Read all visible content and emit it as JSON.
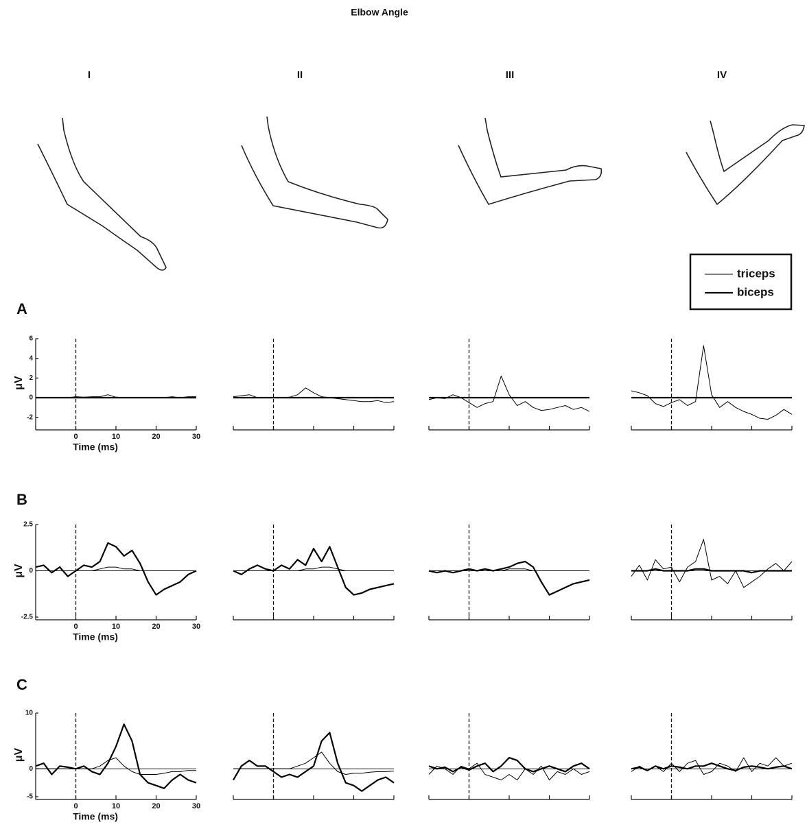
{
  "title": "Elbow Angle",
  "columns": [
    "I",
    "II",
    "III",
    "IV"
  ],
  "rows": [
    "A",
    "B",
    "C"
  ],
  "chart_data": [
    {
      "type": "line",
      "x": [
        -10,
        -8,
        -6,
        -4,
        -2,
        0,
        2,
        4,
        6,
        8,
        10,
        12,
        14,
        16,
        18,
        20,
        22,
        24,
        26,
        28,
        30
      ],
      "xlim": [
        -10,
        30
      ],
      "xticks": [
        0,
        10,
        20,
        30
      ],
      "ylim": [
        -3,
        6
      ],
      "yticks": [
        -2,
        0,
        2,
        4,
        6
      ],
      "vline": 0,
      "hline": 0,
      "tick_labels": true,
      "xlabel": "Time (ms)",
      "ylabel": "μV",
      "legend": true,
      "series": [
        {
          "name": "triceps",
          "color": "#000000",
          "width": 1,
          "values": [
            0,
            0,
            0,
            0,
            0,
            0.1,
            0.05,
            0.1,
            0.1,
            0.3,
            0.05,
            0,
            0,
            0,
            0,
            0,
            0,
            0.1,
            0,
            0.1,
            0.1
          ]
        },
        {
          "name": "biceps",
          "color": "#000000",
          "width": 2.2,
          "values": [
            0,
            0,
            0,
            0,
            0,
            0,
            0,
            0,
            0,
            0,
            0,
            0,
            0,
            0,
            0,
            0,
            0,
            0,
            0,
            0,
            0
          ]
        }
      ]
    },
    {
      "type": "line",
      "x": [
        -10,
        -8,
        -6,
        -4,
        -2,
        0,
        2,
        4,
        6,
        8,
        10,
        12,
        14,
        16,
        18,
        20,
        22,
        24,
        26,
        28,
        30
      ],
      "xlim": [
        -10,
        30
      ],
      "xticks": [
        0,
        10,
        20,
        30
      ],
      "ylim": [
        -3,
        6
      ],
      "vline": 0,
      "hline": 0,
      "tick_labels": false,
      "series": [
        {
          "name": "triceps",
          "color": "#000000",
          "width": 1,
          "values": [
            0.1,
            0.2,
            0.3,
            0,
            0,
            0,
            0,
            0.05,
            0.3,
            1.0,
            0.5,
            0.1,
            0,
            -0.1,
            -0.2,
            -0.3,
            -0.4,
            -0.4,
            -0.3,
            -0.5,
            -0.4
          ]
        },
        {
          "name": "biceps",
          "color": "#000000",
          "width": 2.2,
          "values": [
            0,
            0,
            0,
            0,
            0,
            0,
            0,
            0,
            0,
            0,
            0,
            0,
            0,
            0,
            0,
            0,
            0,
            0,
            0,
            0,
            0
          ]
        }
      ]
    },
    {
      "type": "line",
      "x": [
        -10,
        -8,
        -6,
        -4,
        -2,
        0,
        2,
        4,
        6,
        8,
        10,
        12,
        14,
        16,
        18,
        20,
        22,
        24,
        26,
        28,
        30
      ],
      "xlim": [
        -10,
        30
      ],
      "xticks": [
        0,
        10,
        20,
        30
      ],
      "ylim": [
        -3,
        6
      ],
      "vline": 0,
      "hline": 0,
      "tick_labels": false,
      "series": [
        {
          "name": "triceps",
          "color": "#000000",
          "width": 1,
          "values": [
            -0.2,
            0,
            -0.1,
            0.3,
            0,
            -0.5,
            -1,
            -0.6,
            -0.4,
            2.2,
            0.3,
            -0.8,
            -0.4,
            -1,
            -1.3,
            -1.2,
            -1.0,
            -0.8,
            -1.2,
            -1.0,
            -1.4
          ]
        },
        {
          "name": "biceps",
          "color": "#000000",
          "width": 2.2,
          "values": [
            0,
            0,
            0,
            0,
            0,
            0,
            0,
            0,
            0,
            0,
            0,
            0,
            0,
            0,
            0,
            0,
            0,
            0,
            0,
            0,
            0
          ]
        }
      ]
    },
    {
      "type": "line",
      "x": [
        -10,
        -8,
        -6,
        -4,
        -2,
        0,
        2,
        4,
        6,
        8,
        10,
        12,
        14,
        16,
        18,
        20,
        22,
        24,
        26,
        28,
        30
      ],
      "xlim": [
        -10,
        30
      ],
      "xticks": [
        0,
        10,
        20,
        30
      ],
      "ylim": [
        -3,
        6
      ],
      "vline": 0,
      "hline": 0,
      "tick_labels": false,
      "series": [
        {
          "name": "triceps",
          "color": "#000000",
          "width": 1,
          "values": [
            0.7,
            0.5,
            0.2,
            -0.6,
            -0.9,
            -0.5,
            -0.2,
            -0.8,
            -0.4,
            5.3,
            0.3,
            -1.0,
            -0.4,
            -1.0,
            -1.4,
            -1.7,
            -2.1,
            -2.2,
            -1.8,
            -1.2,
            -1.7
          ]
        },
        {
          "name": "biceps",
          "color": "#000000",
          "width": 2.2,
          "values": [
            0,
            0,
            0,
            0,
            0,
            0,
            0,
            0,
            0,
            0,
            0,
            0,
            0,
            0,
            0,
            0,
            0,
            0,
            0,
            0,
            0
          ]
        }
      ]
    },
    {
      "type": "line",
      "x": [
        -10,
        -8,
        -6,
        -4,
        -2,
        0,
        2,
        4,
        6,
        8,
        10,
        12,
        14,
        16,
        18,
        20,
        22,
        24,
        26,
        28,
        30
      ],
      "xlim": [
        -10,
        30
      ],
      "xticks": [
        0,
        10,
        20,
        30
      ],
      "ylim": [
        -2.5,
        2.5
      ],
      "yticks": [
        -2.5,
        0,
        2.5
      ],
      "vline": 0,
      "hline": 0,
      "tick_labels": true,
      "xlabel": "Time (ms)",
      "ylabel": "μV",
      "series": [
        {
          "name": "triceps",
          "color": "#000000",
          "width": 1,
          "values": [
            0,
            0,
            0,
            0,
            0,
            0,
            0,
            0,
            0.1,
            0.2,
            0.2,
            0.1,
            0.1,
            0,
            0,
            0,
            0,
            0,
            0,
            0,
            0
          ]
        },
        {
          "name": "biceps",
          "color": "#000000",
          "width": 2.2,
          "values": [
            0.2,
            0.3,
            -0.1,
            0.2,
            -0.3,
            0,
            0.3,
            0.2,
            0.5,
            1.5,
            1.3,
            0.8,
            1.1,
            0.4,
            -0.6,
            -1.3,
            -1.0,
            -0.8,
            -0.6,
            -0.2,
            0
          ]
        }
      ]
    },
    {
      "type": "line",
      "x": [
        -10,
        -8,
        -6,
        -4,
        -2,
        0,
        2,
        4,
        6,
        8,
        10,
        12,
        14,
        16,
        18,
        20,
        22,
        24,
        26,
        28,
        30
      ],
      "xlim": [
        -10,
        30
      ],
      "xticks": [
        0,
        10,
        20,
        30
      ],
      "ylim": [
        -2.5,
        2.5
      ],
      "vline": 0,
      "hline": 0,
      "tick_labels": false,
      "series": [
        {
          "name": "triceps",
          "color": "#000000",
          "width": 1,
          "values": [
            0,
            0,
            0,
            0,
            0,
            0,
            0,
            0,
            0,
            0.1,
            0.1,
            0.2,
            0.2,
            0.1,
            0,
            0,
            0,
            0,
            0,
            0,
            0
          ]
        },
        {
          "name": "biceps",
          "color": "#000000",
          "width": 2.2,
          "values": [
            0,
            -0.2,
            0.1,
            0.3,
            0.1,
            0,
            0.3,
            0.1,
            0.6,
            0.3,
            1.2,
            0.5,
            1.3,
            0.2,
            -0.9,
            -1.3,
            -1.2,
            -1.0,
            -0.9,
            -0.8,
            -0.7
          ]
        }
      ]
    },
    {
      "type": "line",
      "x": [
        -10,
        -8,
        -6,
        -4,
        -2,
        0,
        2,
        4,
        6,
        8,
        10,
        12,
        14,
        16,
        18,
        20,
        22,
        24,
        26,
        28,
        30
      ],
      "xlim": [
        -10,
        30
      ],
      "xticks": [
        0,
        10,
        20,
        30
      ],
      "ylim": [
        -2.5,
        2.5
      ],
      "vline": 0,
      "hline": 0,
      "tick_labels": false,
      "series": [
        {
          "name": "triceps",
          "color": "#000000",
          "width": 1,
          "values": [
            0,
            0,
            0,
            0,
            0,
            0,
            0,
            0,
            0,
            0,
            0.1,
            0.1,
            0.1,
            0,
            0,
            0,
            0,
            0,
            0,
            0,
            0
          ]
        },
        {
          "name": "biceps",
          "color": "#000000",
          "width": 2.2,
          "values": [
            0,
            -0.1,
            0,
            -0.1,
            0,
            0.1,
            0,
            0.1,
            0,
            0.1,
            0.2,
            0.4,
            0.5,
            0.2,
            -0.6,
            -1.3,
            -1.1,
            -0.9,
            -0.7,
            -0.6,
            -0.5
          ]
        }
      ]
    },
    {
      "type": "line",
      "x": [
        -10,
        -8,
        -6,
        -4,
        -2,
        0,
        2,
        4,
        6,
        8,
        10,
        12,
        14,
        16,
        18,
        20,
        22,
        24,
        26,
        28,
        30
      ],
      "xlim": [
        -10,
        30
      ],
      "xticks": [
        0,
        10,
        20,
        30
      ],
      "ylim": [
        -2.5,
        2.5
      ],
      "vline": 0,
      "hline": 0,
      "tick_labels": false,
      "series": [
        {
          "name": "triceps",
          "color": "#000000",
          "width": 1,
          "values": [
            -0.3,
            0.3,
            -0.5,
            0.6,
            0.1,
            0.2,
            -0.6,
            0.2,
            0.5,
            1.7,
            -0.5,
            -0.3,
            -0.7,
            0,
            -0.9,
            -0.6,
            -0.3,
            0.1,
            0.4,
            0,
            0.5
          ]
        },
        {
          "name": "biceps",
          "color": "#000000",
          "width": 2.2,
          "values": [
            0,
            0,
            0,
            0.1,
            0,
            0,
            0,
            0,
            0.1,
            0.1,
            0,
            0,
            0,
            0,
            0,
            -0.1,
            0,
            0,
            0,
            0,
            0
          ]
        }
      ]
    },
    {
      "type": "line",
      "x": [
        -10,
        -8,
        -6,
        -4,
        -2,
        0,
        2,
        4,
        6,
        8,
        10,
        12,
        14,
        16,
        18,
        20,
        22,
        24,
        26,
        28,
        30
      ],
      "xlim": [
        -10,
        30
      ],
      "xticks": [
        0,
        10,
        20,
        30
      ],
      "ylim": [
        -5,
        10
      ],
      "yticks": [
        -5,
        0,
        10
      ],
      "vline": 0,
      "hline": 0,
      "tick_labels": true,
      "xlabel": "Time (ms)",
      "ylabel": "μV",
      "series": [
        {
          "name": "triceps",
          "color": "#000000",
          "width": 1,
          "values": [
            0,
            0,
            0,
            0,
            0,
            0,
            0,
            0,
            0.5,
            1.5,
            2,
            0.5,
            -0.5,
            -1,
            -1,
            -1,
            -0.8,
            -0.5,
            -0.5,
            -0.3,
            -0.3
          ]
        },
        {
          "name": "biceps",
          "color": "#000000",
          "width": 2.2,
          "values": [
            0.5,
            1,
            -1,
            0.5,
            0.3,
            0,
            0.5,
            -0.5,
            -1,
            1,
            4,
            8,
            5,
            -1,
            -2.5,
            -3,
            -3.5,
            -2,
            -1,
            -2,
            -2.5
          ]
        }
      ]
    },
    {
      "type": "line",
      "x": [
        -10,
        -8,
        -6,
        -4,
        -2,
        0,
        2,
        4,
        6,
        8,
        10,
        12,
        14,
        16,
        18,
        20,
        22,
        24,
        26,
        28,
        30
      ],
      "xlim": [
        -10,
        30
      ],
      "xticks": [
        0,
        10,
        20,
        30
      ],
      "ylim": [
        -5,
        10
      ],
      "vline": 0,
      "hline": 0,
      "tick_labels": false,
      "series": [
        {
          "name": "triceps",
          "color": "#000000",
          "width": 1,
          "values": [
            0,
            0,
            0,
            0,
            0,
            0,
            0,
            0,
            0.5,
            1,
            2,
            3,
            1,
            -0.5,
            -1,
            -0.8,
            -0.8,
            -0.6,
            -0.5,
            -0.5,
            -0.4
          ]
        },
        {
          "name": "biceps",
          "color": "#000000",
          "width": 2.2,
          "values": [
            -2,
            0.5,
            1.5,
            0.5,
            0.5,
            -0.5,
            -1.5,
            -1,
            -1.5,
            -0.5,
            0.5,
            5,
            6.5,
            1,
            -2.5,
            -3,
            -4,
            -3,
            -2,
            -1.5,
            -2.5
          ]
        }
      ]
    },
    {
      "type": "line",
      "x": [
        -10,
        -8,
        -6,
        -4,
        -2,
        0,
        2,
        4,
        6,
        8,
        10,
        12,
        14,
        16,
        18,
        20,
        22,
        24,
        26,
        28,
        30
      ],
      "xlim": [
        -10,
        30
      ],
      "xticks": [
        0,
        10,
        20,
        30
      ],
      "ylim": [
        -5,
        10
      ],
      "vline": 0,
      "hline": 0,
      "tick_labels": false,
      "series": [
        {
          "name": "triceps",
          "color": "#000000",
          "width": 1,
          "values": [
            -1,
            0.5,
            0,
            -1,
            0.5,
            0,
            1,
            -1,
            -1.5,
            -2,
            -1,
            -2,
            0,
            -1,
            0.5,
            -2,
            -0.5,
            -1,
            0,
            -1,
            -0.5
          ]
        },
        {
          "name": "biceps",
          "color": "#000000",
          "width": 2.2,
          "values": [
            0.5,
            0,
            0.3,
            -0.5,
            0.3,
            -0.2,
            0.5,
            1,
            -0.5,
            0.5,
            2,
            1.5,
            0,
            -0.5,
            0,
            0.5,
            0,
            -0.5,
            0.5,
            1,
            0
          ]
        }
      ]
    },
    {
      "type": "line",
      "x": [
        -10,
        -8,
        -6,
        -4,
        -2,
        0,
        2,
        4,
        6,
        8,
        10,
        12,
        14,
        16,
        18,
        20,
        22,
        24,
        26,
        28,
        30
      ],
      "xlim": [
        -10,
        30
      ],
      "xticks": [
        0,
        10,
        20,
        30
      ],
      "ylim": [
        -5,
        10
      ],
      "vline": 0,
      "hline": 0,
      "tick_labels": false,
      "series": [
        {
          "name": "triceps",
          "color": "#000000",
          "width": 1,
          "values": [
            -0.5,
            0.5,
            -0.3,
            0.5,
            -0.5,
            1,
            -0.5,
            1,
            1.5,
            -1,
            -0.5,
            1,
            0.5,
            -0.5,
            2,
            -0.5,
            1,
            0.5,
            2,
            0.5,
            1
          ]
        },
        {
          "name": "biceps",
          "color": "#000000",
          "width": 2.2,
          "values": [
            0,
            0.3,
            -0.3,
            0.5,
            0,
            0.5,
            0.3,
            0,
            0.5,
            0.5,
            1,
            0.5,
            0,
            -0.3,
            0.3,
            0.5,
            0.3,
            0,
            0.3,
            0.5,
            0
          ]
        }
      ]
    }
  ]
}
